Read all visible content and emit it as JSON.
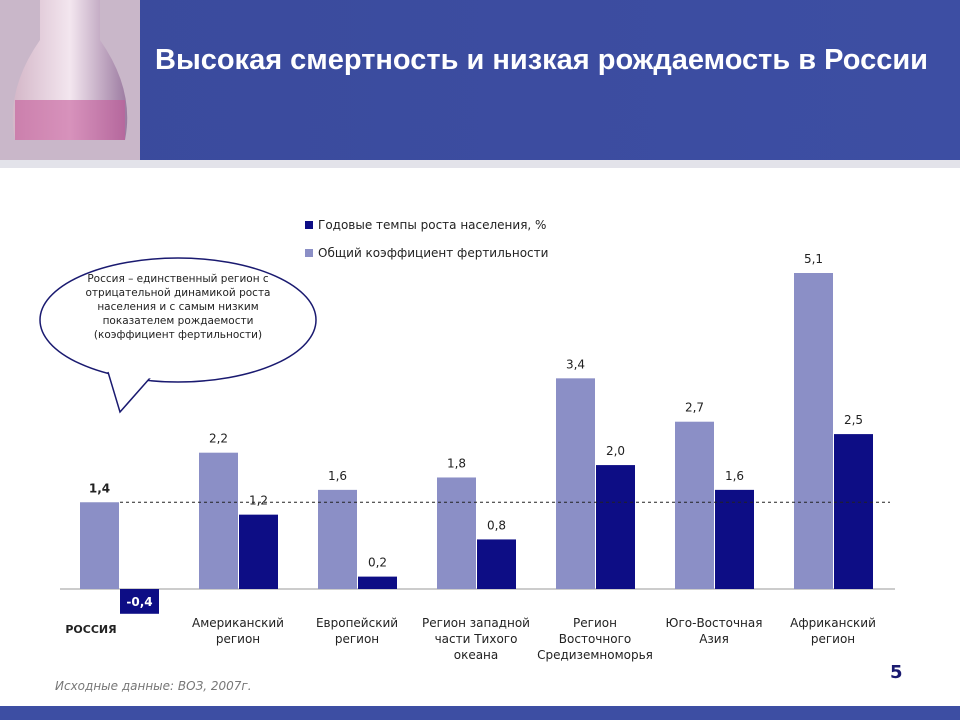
{
  "title": "Высокая смертность и низкая рождаемость в России",
  "chart_data": {
    "type": "bar",
    "categories": [
      "РОССИЯ",
      "Американский регион",
      "Европейский регион",
      "Регион западной части Тихого океана",
      "Регион Восточного Средиземноморья",
      "Юго-Восточная Азия",
      "Африканский регион"
    ],
    "series": [
      {
        "name": "Годовые темпы роста населения, %",
        "color": "#0d0d85",
        "values": [
          -0.4,
          1.2,
          0.2,
          0.8,
          2.0,
          1.6,
          2.5
        ],
        "value_labels": [
          "-0,4",
          "1,2",
          "0,2",
          "0,8",
          "2,0",
          "1,6",
          "2,5"
        ]
      },
      {
        "name": "Общий коэффициент фертильности",
        "color": "#8b8fc6",
        "values": [
          1.4,
          2.2,
          1.6,
          1.8,
          3.4,
          2.7,
          5.1
        ],
        "value_labels": [
          "1,4",
          "2,2",
          "1,6",
          "1,8",
          "3,4",
          "2,7",
          "5,1"
        ]
      }
    ],
    "annotation": "Россия – единственный регион с отрицательной динамикой роста населения и с самым низким показателем рождаемости (коэффициент фертильности)"
  },
  "source": "Исходные данные: ВОЗ, 2007г.",
  "page_number": 5
}
